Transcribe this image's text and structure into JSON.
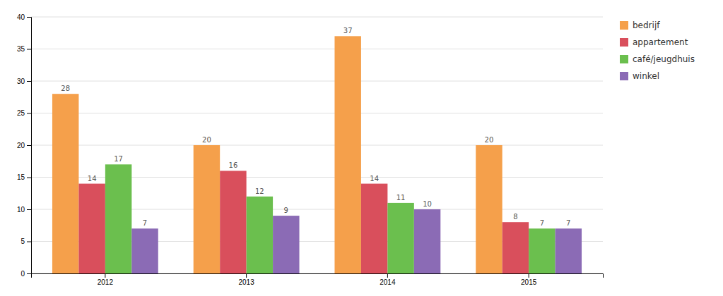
{
  "chart_data": {
    "type": "bar",
    "categories": [
      "2012",
      "2013",
      "2014",
      "2015"
    ],
    "series": [
      {
        "name": "bedrijf",
        "color": "#F5A04B",
        "values": [
          28,
          20,
          37,
          20
        ]
      },
      {
        "name": "appartement",
        "color": "#D94F5C",
        "values": [
          14,
          16,
          14,
          8
        ]
      },
      {
        "name": "café/jeugdhuis",
        "color": "#6BBF4E",
        "values": [
          17,
          12,
          11,
          7
        ]
      },
      {
        "name": "winkel",
        "color": "#8B6BB5",
        "values": [
          7,
          9,
          10,
          7
        ]
      }
    ],
    "ylim": [
      0,
      40
    ],
    "yticks": [
      0,
      5,
      10,
      15,
      20,
      25,
      30,
      35,
      40
    ],
    "grid": true,
    "legend": "right",
    "data_labels": true
  }
}
